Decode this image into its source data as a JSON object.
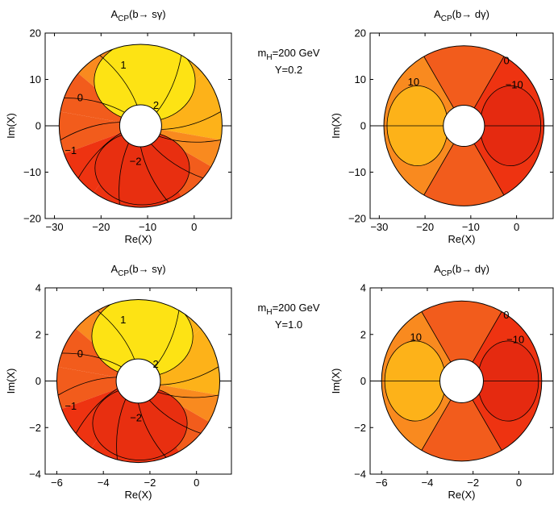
{
  "chart_data": [
    {
      "type": "contour",
      "title_main": "A",
      "title_sub": "CP",
      "title_rest": "(b→ sγ)",
      "xlabel": "Re(X)",
      "ylabel": "Im(X)",
      "xlim": [
        -32,
        8
      ],
      "ylim": [
        -20,
        20
      ],
      "xticks": [
        -30,
        -20,
        -10,
        0
      ],
      "yticks": [
        -20,
        -10,
        0,
        10,
        20
      ],
      "tick_labels_x": [
        "−30",
        "−20",
        "−10",
        "0"
      ],
      "tick_labels_y": [
        "−20",
        "−10",
        "0",
        "10",
        "20"
      ],
      "center": [
        -11.5,
        0
      ],
      "inner_radius": 4.5,
      "outer_radius": 17.5,
      "process": "s",
      "contour_labels": [
        {
          "text": "1",
          "x": -15.2,
          "y": 13.2
        },
        {
          "text": "0",
          "x": -24.5,
          "y": 6.2
        },
        {
          "text": "2",
          "x": -8.2,
          "y": 4.5
        },
        {
          "text": "−1",
          "x": -26.5,
          "y": -5.2
        },
        {
          "text": "−2",
          "x": -12.6,
          "y": -7.6
        }
      ]
    },
    {
      "type": "contour",
      "title_main": "A",
      "title_sub": "CP",
      "title_rest": "(b→ dγ)",
      "xlabel": "Re(X)",
      "ylabel": "Im(X)",
      "xlim": [
        -32,
        8
      ],
      "ylim": [
        -20,
        20
      ],
      "xticks": [
        -30,
        -20,
        -10,
        0
      ],
      "yticks": [
        -20,
        -10,
        0,
        10,
        20
      ],
      "tick_labels_x": [
        "−30",
        "−20",
        "−10",
        "0"
      ],
      "tick_labels_y": [
        "−20",
        "−10",
        "0",
        "10",
        "20"
      ],
      "center": [
        -11.5,
        0
      ],
      "inner_radius": 4.5,
      "outer_radius": 17.5,
      "process": "d",
      "contour_labels": [
        {
          "text": "0",
          "x": -2.2,
          "y": 14.2
        },
        {
          "text": "10",
          "x": -22.5,
          "y": 9.6
        },
        {
          "text": "−10",
          "x": -0.5,
          "y": 9.0
        }
      ]
    },
    {
      "type": "contour",
      "title_main": "A",
      "title_sub": "CP",
      "title_rest": "(b→ sγ)",
      "xlabel": "Re(X)",
      "ylabel": "Im(X)",
      "xlim": [
        -6.5,
        1.5
      ],
      "ylim": [
        -4,
        4
      ],
      "xticks": [
        -6,
        -4,
        -2,
        0
      ],
      "yticks": [
        -4,
        -2,
        0,
        2,
        4
      ],
      "tick_labels_x": [
        "−6",
        "−4",
        "−2",
        "0"
      ],
      "tick_labels_y": [
        "−4",
        "−2",
        "0",
        "2",
        "4"
      ],
      "center": [
        -2.5,
        0
      ],
      "inner_radius": 0.95,
      "outer_radius": 3.5,
      "process": "s",
      "contour_labels": [
        {
          "text": "1",
          "x": -3.15,
          "y": 2.65
        },
        {
          "text": "0",
          "x": -5.0,
          "y": 1.2
        },
        {
          "text": "2",
          "x": -1.75,
          "y": 0.75
        },
        {
          "text": "−1",
          "x": -5.4,
          "y": -1.05
        },
        {
          "text": "−2",
          "x": -2.6,
          "y": -1.55
        }
      ]
    },
    {
      "type": "contour",
      "title_main": "A",
      "title_sub": "CP",
      "title_rest": "(b→ dγ)",
      "xlabel": "Re(X)",
      "ylabel": "Im(X)",
      "xlim": [
        -6.5,
        1.5
      ],
      "ylim": [
        -4,
        4
      ],
      "xticks": [
        -6,
        -4,
        -2,
        0
      ],
      "yticks": [
        -4,
        -2,
        0,
        2,
        4
      ],
      "tick_labels_x": [
        "−6",
        "−4",
        "−2",
        "0"
      ],
      "tick_labels_y": [
        "−4",
        "−2",
        "0",
        "2",
        "4"
      ],
      "center": [
        -2.5,
        0
      ],
      "inner_radius": 0.95,
      "outer_radius": 3.5,
      "process": "d",
      "contour_labels": [
        {
          "text": "0",
          "x": -0.55,
          "y": 2.85
        },
        {
          "text": "10",
          "x": -4.5,
          "y": 1.9
        },
        {
          "text": "−10",
          "x": -0.15,
          "y": 1.8
        }
      ]
    }
  ],
  "annotations": [
    {
      "main": "m",
      "sub": "H",
      "rest": "=200 GeV",
      "line2": "Y=0.2"
    },
    {
      "main": "m",
      "sub": "H",
      "rest": "=200 GeV",
      "line2": "Y=1.0"
    }
  ],
  "colors": {
    "red": "#ee3311",
    "redorange": "#f25c1c",
    "orange": "#f98a1f",
    "amber": "#fdb219",
    "yellow": "#fde314",
    "line": "#000000"
  }
}
